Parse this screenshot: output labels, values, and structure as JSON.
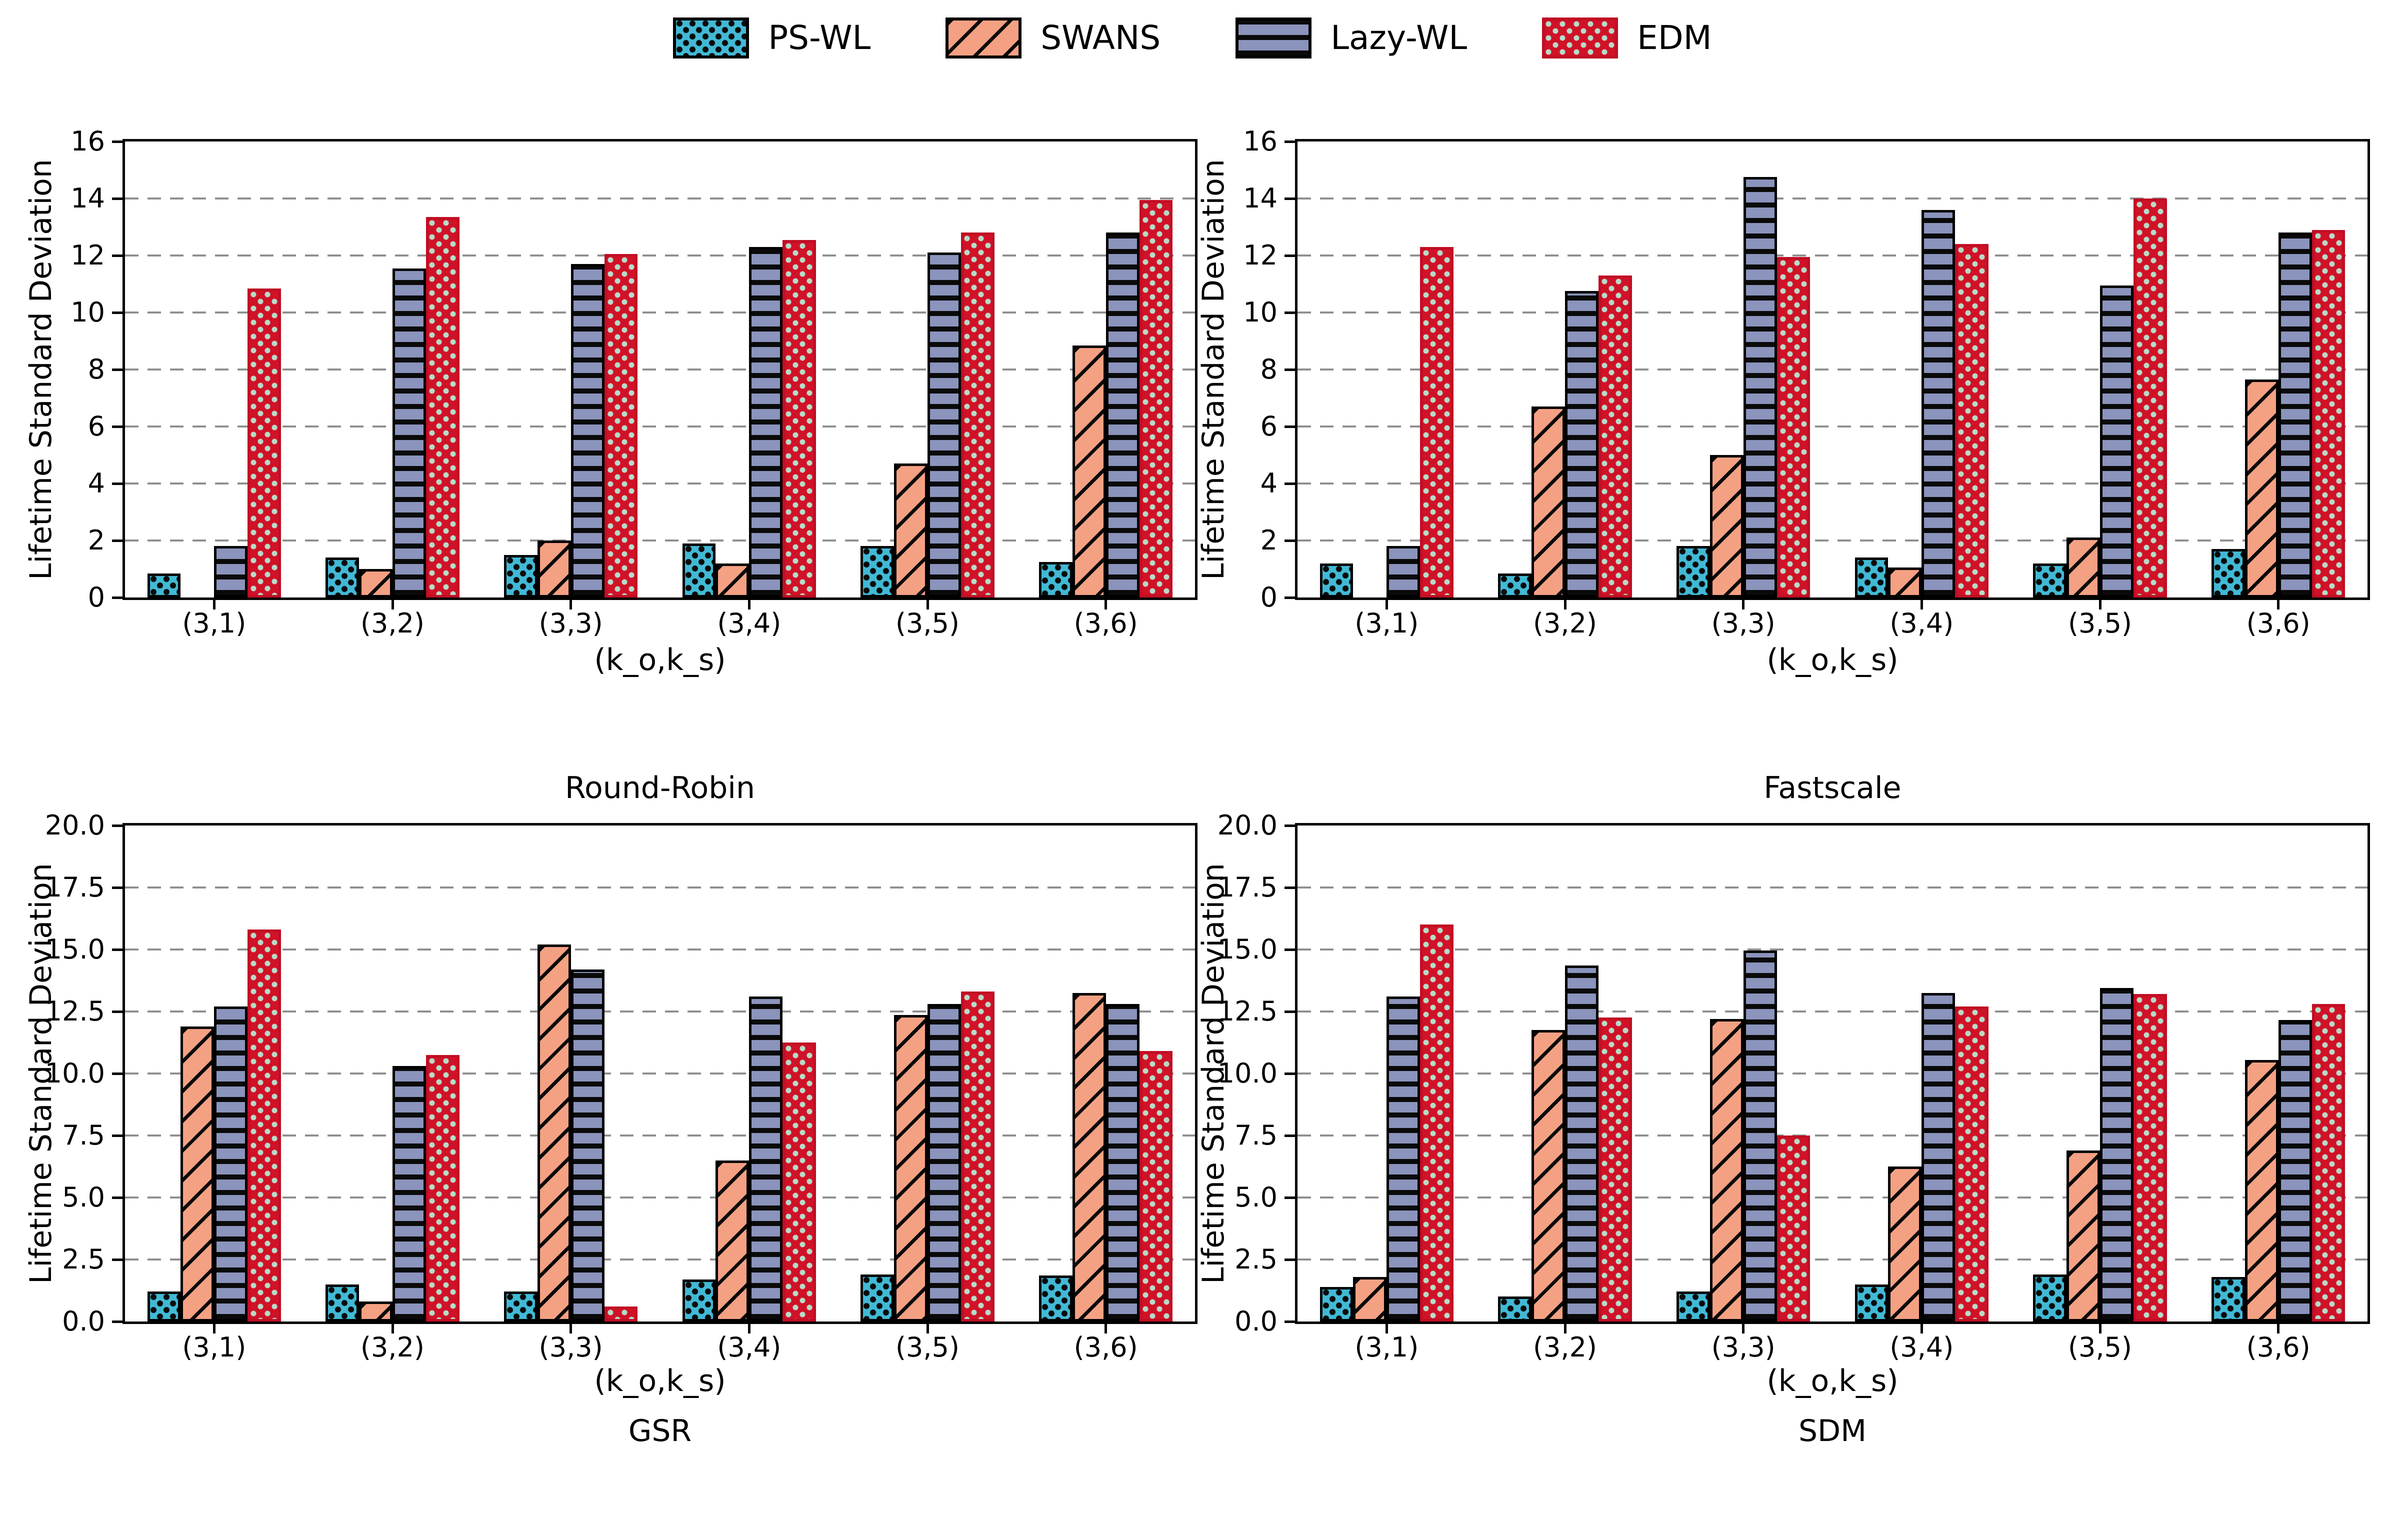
{
  "figure": {
    "background": "#ffffff",
    "grid_color": "#8f8f8f",
    "text_color": "#000000"
  },
  "legend": {
    "position": "top-center",
    "items": [
      {
        "label": "PS-WL",
        "fill": "#41b9d5",
        "edge": "#000000",
        "pattern": "dots-black",
        "hatch_desc": "black dots on teal"
      },
      {
        "label": "SWANS",
        "fill": "#f4a183",
        "edge": "#000000",
        "pattern": "diag",
        "hatch_desc": "black diagonal stripes on salmon"
      },
      {
        "label": "Lazy-WL",
        "fill": "#8b94bc",
        "edge": "#000000",
        "pattern": "hlines",
        "hatch_desc": "black horizontal lines on blue-gray"
      },
      {
        "label": "EDM",
        "fill": "#d01228",
        "edge": "#c00e24",
        "pattern": "dots-light",
        "hatch_desc": "pale green dots on crimson"
      }
    ]
  },
  "chart_data": [
    {
      "type": "bar",
      "title": "Round-Robin",
      "xlabel": "(k_o,k_s)",
      "ylabel": "Lifetime Standard Deviation",
      "ylim": [
        0,
        16
      ],
      "ytick_values": [
        0,
        2,
        4,
        6,
        8,
        10,
        12,
        14,
        16
      ],
      "ytick_labels": [
        "0",
        "2",
        "4",
        "6",
        "8",
        "10",
        "12",
        "14",
        "16"
      ],
      "grid": "dashed-horizontal",
      "categories": [
        "(3,1)",
        "(3,2)",
        "(3,3)",
        "(3,4)",
        "(3,5)",
        "(3,6)"
      ],
      "series": [
        {
          "name": "PS-WL",
          "values": [
            0.85,
            1.4,
            1.5,
            1.9,
            1.8,
            1.25
          ]
        },
        {
          "name": "SWANS",
          "values": [
            0.0,
            1.0,
            2.0,
            1.2,
            4.7,
            8.85
          ]
        },
        {
          "name": "Lazy-WL",
          "values": [
            1.8,
            11.55,
            11.7,
            12.3,
            12.1,
            12.8
          ]
        },
        {
          "name": "EDM",
          "values": [
            10.85,
            13.35,
            12.05,
            12.55,
            12.8,
            13.95
          ]
        }
      ]
    },
    {
      "type": "bar",
      "title": "Fastscale",
      "xlabel": "(k_o,k_s)",
      "ylabel": "Lifetime Standard Deviation",
      "ylim": [
        0,
        16
      ],
      "ytick_values": [
        0,
        2,
        4,
        6,
        8,
        10,
        12,
        14,
        16
      ],
      "ytick_labels": [
        "0",
        "2",
        "4",
        "6",
        "8",
        "10",
        "12",
        "14",
        "16"
      ],
      "grid": "dashed-horizontal",
      "categories": [
        "(3,1)",
        "(3,2)",
        "(3,3)",
        "(3,4)",
        "(3,5)",
        "(3,6)"
      ],
      "series": [
        {
          "name": "PS-WL",
          "values": [
            1.2,
            0.85,
            1.8,
            1.4,
            1.2,
            1.7
          ]
        },
        {
          "name": "SWANS",
          "values": [
            0.0,
            6.7,
            5.0,
            1.05,
            2.1,
            7.65
          ]
        },
        {
          "name": "Lazy-WL",
          "values": [
            1.8,
            10.75,
            14.75,
            13.6,
            10.95,
            12.8
          ]
        },
        {
          "name": "EDM",
          "values": [
            12.3,
            11.3,
            11.95,
            12.4,
            14.0,
            12.9
          ]
        }
      ]
    },
    {
      "type": "bar",
      "title": "GSR",
      "xlabel": "(k_o,k_s)",
      "ylabel": "Lifetime Standard Deviation",
      "ylim": [
        0,
        20
      ],
      "ytick_values": [
        0,
        2.5,
        5,
        7.5,
        10,
        12.5,
        15,
        17.5,
        20
      ],
      "ytick_labels": [
        "0.0",
        "2.5",
        "5.0",
        "7.5",
        "10.0",
        "12.5",
        "15.0",
        "17.5",
        "20.0"
      ],
      "grid": "dashed-horizontal",
      "categories": [
        "(3,1)",
        "(3,2)",
        "(3,3)",
        "(3,4)",
        "(3,5)",
        "(3,6)"
      ],
      "series": [
        {
          "name": "PS-WL",
          "values": [
            1.2,
            1.5,
            1.2,
            1.7,
            1.9,
            1.85
          ]
        },
        {
          "name": "SWANS",
          "values": [
            11.9,
            0.8,
            15.2,
            6.5,
            12.35,
            13.25
          ]
        },
        {
          "name": "Lazy-WL",
          "values": [
            12.7,
            10.3,
            14.2,
            13.1,
            12.8,
            12.8
          ]
        },
        {
          "name": "EDM",
          "values": [
            15.8,
            10.75,
            0.6,
            11.25,
            13.3,
            10.9
          ]
        }
      ]
    },
    {
      "type": "bar",
      "title": "SDM",
      "xlabel": "(k_o,k_s)",
      "ylabel": "Lifetime Standard Deviation",
      "ylim": [
        0,
        20
      ],
      "ytick_values": [
        0,
        2.5,
        5,
        7.5,
        10,
        12.5,
        15,
        17.5,
        20
      ],
      "ytick_labels": [
        "0.0",
        "2.5",
        "5.0",
        "7.5",
        "10.0",
        "12.5",
        "15.0",
        "17.5",
        "20.0"
      ],
      "grid": "dashed-horizontal",
      "categories": [
        "(3,1)",
        "(3,2)",
        "(3,3)",
        "(3,4)",
        "(3,5)",
        "(3,6)"
      ],
      "series": [
        {
          "name": "PS-WL",
          "values": [
            1.4,
            1.0,
            1.2,
            1.5,
            1.9,
            1.8
          ]
        },
        {
          "name": "SWANS",
          "values": [
            1.8,
            11.75,
            12.2,
            6.25,
            6.9,
            10.55
          ]
        },
        {
          "name": "Lazy-WL",
          "values": [
            13.1,
            14.35,
            14.95,
            13.25,
            13.45,
            12.15
          ]
        },
        {
          "name": "EDM",
          "values": [
            16.0,
            12.25,
            7.5,
            12.7,
            13.2,
            12.8
          ]
        }
      ]
    }
  ]
}
